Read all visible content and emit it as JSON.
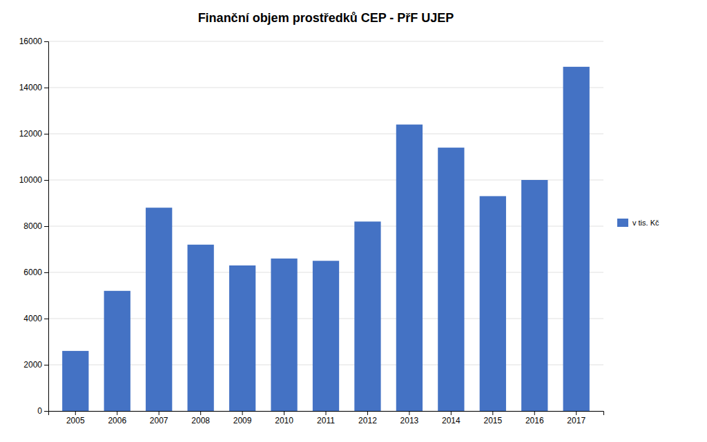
{
  "chart_data": {
    "type": "bar",
    "title": "Finanční objem prostředků CEP -  PřF UJEP",
    "categories": [
      "2005",
      "2006",
      "2007",
      "2008",
      "2009",
      "2010",
      "2011",
      "2012",
      "2013",
      "2014",
      "2015",
      "2016",
      "2017"
    ],
    "series": [
      {
        "name": "v tis. Kč",
        "color": "#4472C4",
        "values": [
          2600,
          5200,
          8800,
          7200,
          6300,
          6600,
          6500,
          8200,
          12400,
          11400,
          9300,
          10000,
          14900
        ]
      }
    ],
    "ylim": [
      0,
      16000
    ],
    "yticks": [
      0,
      2000,
      4000,
      6000,
      8000,
      10000,
      12000,
      14000,
      16000
    ],
    "grid": true,
    "legend": "right"
  }
}
